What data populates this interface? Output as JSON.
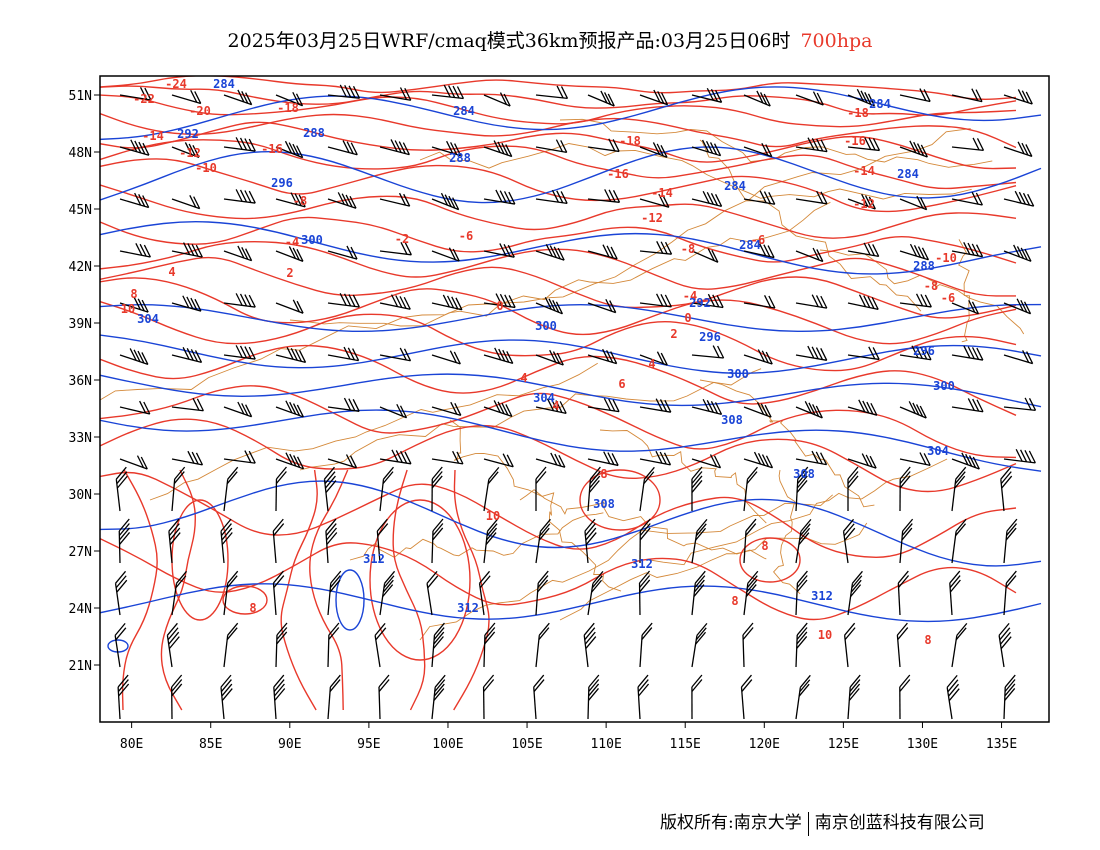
{
  "title": {
    "main": "2025年03月25日WRF/cmaq模式36km预报产品:03月25日06时",
    "level": "700hpa"
  },
  "axes": {
    "x_ticks": [
      "80E",
      "85E",
      "90E",
      "95E",
      "100E",
      "105E",
      "110E",
      "115E",
      "120E",
      "125E",
      "130E",
      "135E"
    ],
    "y_ticks": [
      "51N",
      "48N",
      "45N",
      "42N",
      "39N",
      "36N",
      "33N",
      "30N",
      "27N",
      "24N",
      "21N"
    ]
  },
  "footer": {
    "left": "版权所有:南京大学",
    "right": "南京创蓝科技有限公司"
  },
  "colors": {
    "temperature": "#e8392b",
    "geopotential": "#1a44d6",
    "boundaries": "#d4893a",
    "wind": "#000000"
  },
  "chart_data": {
    "type": "map",
    "xlim": [
      78,
      138
    ],
    "ylim": [
      18,
      52
    ],
    "temperature_contour_labels": [
      "-24",
      "-22",
      "-20",
      "-18",
      "-16",
      "-14",
      "-12",
      "-10",
      "-8",
      "-6",
      "-4",
      "-2",
      "0",
      "2",
      "4",
      "6",
      "8",
      "10"
    ],
    "geopotential_contour_labels": [
      "284",
      "288",
      "292",
      "296",
      "300",
      "304",
      "308",
      "312"
    ],
    "legend": "none"
  }
}
